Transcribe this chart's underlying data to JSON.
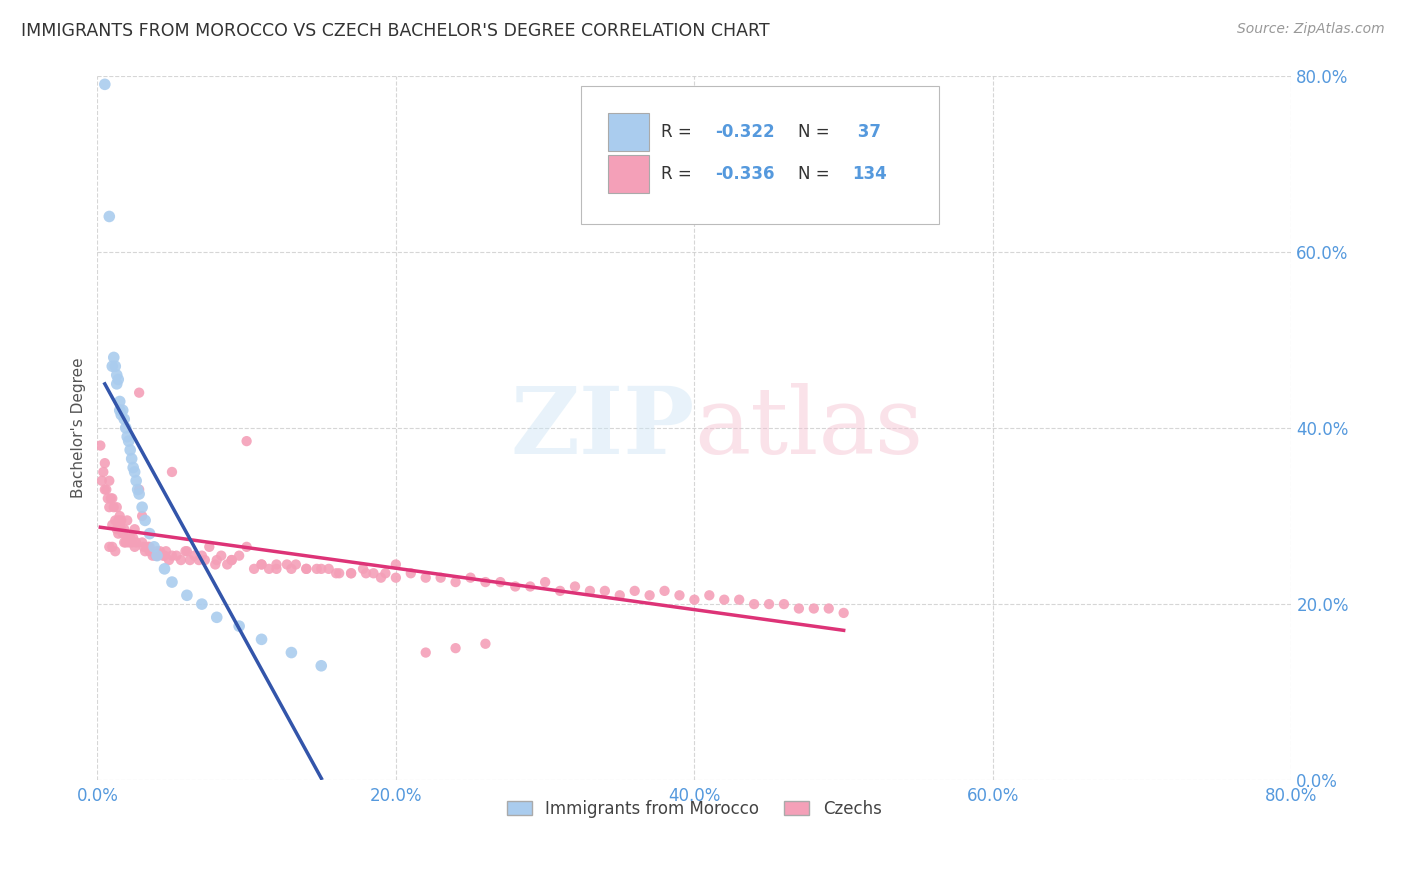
{
  "title": "IMMIGRANTS FROM MOROCCO VS CZECH BACHELOR'S DEGREE CORRELATION CHART",
  "source": "Source: ZipAtlas.com",
  "ylabel": "Bachelor's Degree",
  "xlim": [
    0.0,
    0.8
  ],
  "ylim": [
    0.0,
    0.8
  ],
  "right_yticks": [
    0.0,
    0.2,
    0.4,
    0.6,
    0.8
  ],
  "xticks": [
    0.0,
    0.2,
    0.4,
    0.6,
    0.8
  ],
  "watermark": "ZIPatlas",
  "legend_label1": "Immigrants from Morocco",
  "legend_label2": "Czechs",
  "color_morocco": "#aaccee",
  "color_czech": "#f4a0b8",
  "trendline_color_morocco": "#3355aa",
  "trendline_color_czech": "#dd3377",
  "background_color": "#ffffff",
  "grid_color": "#cccccc",
  "title_color": "#333333",
  "axis_color": "#5599dd",
  "morocco_x": [
    0.005,
    0.008,
    0.01,
    0.011,
    0.012,
    0.013,
    0.013,
    0.014,
    0.015,
    0.015,
    0.016,
    0.017,
    0.018,
    0.019,
    0.02,
    0.021,
    0.022,
    0.023,
    0.024,
    0.025,
    0.026,
    0.027,
    0.028,
    0.03,
    0.032,
    0.035,
    0.038,
    0.04,
    0.045,
    0.05,
    0.06,
    0.07,
    0.08,
    0.095,
    0.11,
    0.13,
    0.15
  ],
  "morocco_y": [
    0.79,
    0.64,
    0.47,
    0.48,
    0.47,
    0.46,
    0.45,
    0.455,
    0.42,
    0.43,
    0.415,
    0.42,
    0.41,
    0.4,
    0.39,
    0.385,
    0.375,
    0.365,
    0.355,
    0.35,
    0.34,
    0.33,
    0.325,
    0.31,
    0.295,
    0.28,
    0.265,
    0.255,
    0.24,
    0.225,
    0.21,
    0.2,
    0.185,
    0.175,
    0.16,
    0.145,
    0.13
  ],
  "czech_x": [
    0.002,
    0.003,
    0.004,
    0.005,
    0.005,
    0.006,
    0.007,
    0.008,
    0.008,
    0.009,
    0.01,
    0.01,
    0.011,
    0.012,
    0.013,
    0.013,
    0.014,
    0.015,
    0.015,
    0.016,
    0.017,
    0.018,
    0.019,
    0.02,
    0.021,
    0.022,
    0.023,
    0.024,
    0.025,
    0.026,
    0.028,
    0.03,
    0.031,
    0.032,
    0.034,
    0.035,
    0.037,
    0.039,
    0.04,
    0.042,
    0.044,
    0.046,
    0.048,
    0.05,
    0.053,
    0.056,
    0.059,
    0.062,
    0.065,
    0.068,
    0.072,
    0.075,
    0.079,
    0.083,
    0.087,
    0.09,
    0.095,
    0.1,
    0.105,
    0.11,
    0.115,
    0.12,
    0.127,
    0.133,
    0.14,
    0.147,
    0.155,
    0.162,
    0.17,
    0.178,
    0.185,
    0.193,
    0.2,
    0.21,
    0.22,
    0.23,
    0.24,
    0.25,
    0.26,
    0.27,
    0.28,
    0.29,
    0.3,
    0.31,
    0.32,
    0.33,
    0.34,
    0.35,
    0.36,
    0.37,
    0.38,
    0.39,
    0.4,
    0.41,
    0.42,
    0.43,
    0.44,
    0.45,
    0.46,
    0.47,
    0.48,
    0.49,
    0.5,
    0.028,
    0.015,
    0.02,
    0.025,
    0.03,
    0.022,
    0.018,
    0.014,
    0.012,
    0.016,
    0.01,
    0.008,
    0.035,
    0.04,
    0.045,
    0.05,
    0.06,
    0.07,
    0.08,
    0.09,
    0.1,
    0.11,
    0.12,
    0.13,
    0.14,
    0.15,
    0.16,
    0.17,
    0.18,
    0.19,
    0.2,
    0.22,
    0.24,
    0.26
  ],
  "czech_y": [
    0.38,
    0.34,
    0.35,
    0.36,
    0.33,
    0.33,
    0.32,
    0.31,
    0.34,
    0.32,
    0.32,
    0.29,
    0.31,
    0.295,
    0.285,
    0.31,
    0.295,
    0.29,
    0.3,
    0.295,
    0.28,
    0.285,
    0.27,
    0.275,
    0.27,
    0.275,
    0.27,
    0.275,
    0.265,
    0.27,
    0.44,
    0.27,
    0.265,
    0.26,
    0.265,
    0.26,
    0.255,
    0.255,
    0.26,
    0.26,
    0.255,
    0.26,
    0.25,
    0.35,
    0.255,
    0.25,
    0.26,
    0.25,
    0.255,
    0.25,
    0.25,
    0.265,
    0.245,
    0.255,
    0.245,
    0.25,
    0.255,
    0.385,
    0.24,
    0.245,
    0.24,
    0.24,
    0.245,
    0.245,
    0.24,
    0.24,
    0.24,
    0.235,
    0.235,
    0.24,
    0.235,
    0.235,
    0.245,
    0.235,
    0.23,
    0.23,
    0.225,
    0.23,
    0.225,
    0.225,
    0.22,
    0.22,
    0.225,
    0.215,
    0.22,
    0.215,
    0.215,
    0.21,
    0.215,
    0.21,
    0.215,
    0.21,
    0.205,
    0.21,
    0.205,
    0.205,
    0.2,
    0.2,
    0.2,
    0.195,
    0.195,
    0.195,
    0.19,
    0.33,
    0.29,
    0.295,
    0.285,
    0.3,
    0.275,
    0.27,
    0.28,
    0.26,
    0.285,
    0.265,
    0.265,
    0.265,
    0.255,
    0.255,
    0.255,
    0.26,
    0.255,
    0.25,
    0.25,
    0.265,
    0.245,
    0.245,
    0.24,
    0.24,
    0.24,
    0.235,
    0.235,
    0.235,
    0.23,
    0.23,
    0.145,
    0.15,
    0.155
  ]
}
